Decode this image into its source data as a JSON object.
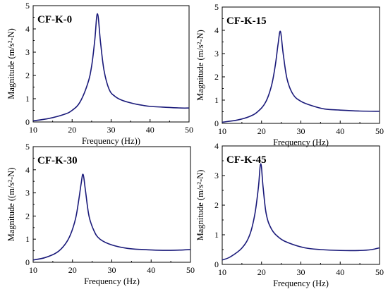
{
  "colors": {
    "curve": "#1a1a7a",
    "axis": "#000000",
    "background": "#ffffff"
  },
  "chart_data": [
    {
      "type": "line",
      "title": "CF-K-0",
      "xlabel": "Frequency (Hz))",
      "ylabel": "Magnitude (m/s²-N)",
      "xlim": [
        10,
        50
      ],
      "ylim": [
        0,
        5
      ],
      "xticks": [
        10,
        20,
        30,
        40,
        50
      ],
      "yticks": [
        0,
        1,
        2,
        3,
        4,
        5
      ],
      "grid": false,
      "series": [
        {
          "x": [
            10,
            14,
            18,
            20,
            22,
            24,
            25,
            25.8,
            26.5,
            27.3,
            28.2,
            29.5,
            31,
            33,
            36,
            38,
            40,
            44,
            48,
            50
          ],
          "values": [
            0.05,
            0.15,
            0.33,
            0.5,
            0.85,
            1.65,
            2.4,
            3.5,
            4.65,
            3.4,
            2.2,
            1.4,
            1.1,
            0.92,
            0.78,
            0.72,
            0.67,
            0.63,
            0.6,
            0.6
          ]
        }
      ]
    },
    {
      "type": "line",
      "title": "CF-K-15",
      "xlabel": "Frequency (Hz)",
      "ylabel": "Magnitude (m/s²-N)",
      "xlim": [
        10,
        50
      ],
      "ylim": [
        0,
        5
      ],
      "xticks": [
        10,
        20,
        30,
        40,
        50
      ],
      "yticks": [
        0,
        1,
        2,
        3,
        4,
        5
      ],
      "grid": false,
      "series": [
        {
          "x": [
            10,
            14,
            17,
            19,
            21,
            22.5,
            23.5,
            24.2,
            24.8,
            25.5,
            26.5,
            28,
            30,
            33,
            36,
            40,
            45,
            50
          ],
          "values": [
            0.05,
            0.15,
            0.3,
            0.5,
            0.9,
            1.6,
            2.5,
            3.4,
            3.95,
            3.0,
            1.9,
            1.25,
            0.95,
            0.75,
            0.62,
            0.57,
            0.53,
            0.52
          ]
        }
      ]
    },
    {
      "type": "line",
      "title": "CF-K-30",
      "xlabel": "Frequency (Hz)",
      "ylabel": "Magnitude ((m/s²-N)",
      "xlim": [
        10,
        50
      ],
      "ylim": [
        0,
        5
      ],
      "xticks": [
        10,
        20,
        30,
        40,
        50
      ],
      "yticks": [
        0,
        1,
        2,
        3,
        4,
        5
      ],
      "grid": false,
      "series": [
        {
          "x": [
            10,
            13,
            16,
            18,
            19.5,
            20.8,
            21.6,
            22.2,
            22.7,
            23.3,
            24.2,
            25.5,
            27,
            30,
            34,
            38,
            42,
            46,
            50
          ],
          "values": [
            0.1,
            0.2,
            0.42,
            0.75,
            1.2,
            1.9,
            2.7,
            3.4,
            3.8,
            3.1,
            2.0,
            1.35,
            1.0,
            0.75,
            0.6,
            0.55,
            0.52,
            0.52,
            0.55
          ]
        }
      ]
    },
    {
      "type": "line",
      "title": "CF-K-45",
      "xlabel": "Frequency (Hz)",
      "ylabel": "Magnitude (m/s²-N)",
      "xlim": [
        10,
        50
      ],
      "ylim": [
        0,
        4
      ],
      "xticks": [
        10,
        20,
        30,
        40,
        50
      ],
      "yticks": [
        0,
        1,
        2,
        3,
        4
      ],
      "grid": false,
      "series": [
        {
          "x": [
            10,
            12,
            15,
            17,
            18.3,
            19.2,
            19.8,
            20.4,
            21.2,
            22.5,
            24.5,
            27,
            31,
            35,
            40,
            45,
            48,
            50
          ],
          "values": [
            0.15,
            0.25,
            0.55,
            1.0,
            1.7,
            2.6,
            3.4,
            2.6,
            1.7,
            1.2,
            0.9,
            0.72,
            0.56,
            0.5,
            0.47,
            0.47,
            0.5,
            0.56
          ]
        }
      ]
    }
  ]
}
